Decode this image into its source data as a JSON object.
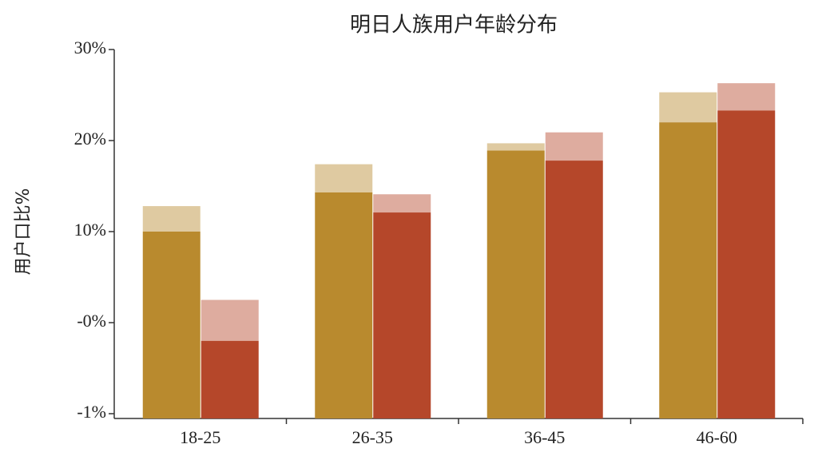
{
  "chart_data": {
    "type": "bar",
    "title": "明日人族用户年龄分布",
    "y_label": "用户口比%",
    "categories": [
      "18-25",
      "26-35",
      "36-45",
      "46-60"
    ],
    "series": [
      {
        "color": "#b98a2e",
        "values": [
          10,
          14.3,
          18.9,
          22
        ],
        "upper": [
          12.8,
          17.4,
          19.7,
          25.3
        ]
      },
      {
        "color": "#b5472a",
        "values": [
          -0.2,
          12.1,
          17.8,
          23.3
        ],
        "upper": [
          2.5,
          14.1,
          20.9,
          26.3
        ]
      }
    ],
    "ylim": [
      -1,
      30
    ],
    "yticks": [
      {
        "value": 30,
        "label": "30%"
      },
      {
        "value": 20,
        "label": "20%"
      },
      {
        "value": 10,
        "label": "10%"
      },
      {
        "value": 0,
        "label": "-0%"
      },
      {
        "value": -1,
        "label": "-1%"
      }
    ]
  }
}
